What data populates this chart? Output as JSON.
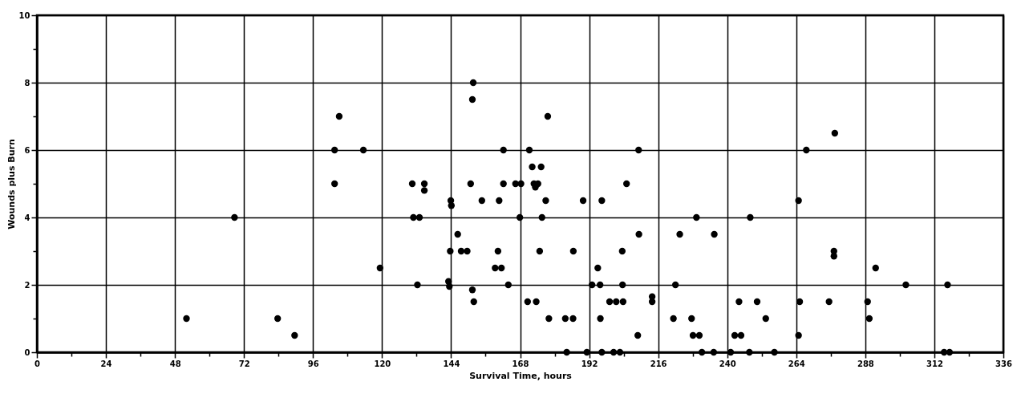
{
  "chart_data": {
    "type": "scatter",
    "xlabel": "Survival Time, hours",
    "ylabel": "Wounds plus Burn",
    "marker": "circle",
    "grid": true,
    "xlim": [
      0,
      336
    ],
    "ylim": [
      0,
      10
    ],
    "xticks": [
      0,
      {
        "value": 12,
        "label": null
      },
      24,
      {
        "value": 36,
        "label": null
      },
      48,
      {
        "value": 60,
        "label": null
      },
      72,
      {
        "value": 84,
        "label": null
      },
      96,
      {
        "value": 108,
        "label": null
      },
      120,
      {
        "value": 132,
        "label": null
      },
      144,
      {
        "value": 156,
        "label": null
      },
      168,
      {
        "value": 180,
        "label": null
      },
      192,
      {
        "value": 204,
        "label": null
      },
      216,
      {
        "value": 228,
        "label": null
      },
      240,
      {
        "value": 252,
        "label": null
      },
      264,
      {
        "value": 276,
        "label": null
      },
      288,
      {
        "value": 300,
        "label": null
      },
      312,
      {
        "value": 324,
        "label": null
      },
      336
    ],
    "yticks": [
      0,
      {
        "value": 1,
        "label": null
      },
      2,
      {
        "value": 3,
        "label": null
      },
      4,
      {
        "value": 5,
        "label": null
      },
      6,
      {
        "value": 7,
        "label": null
      },
      8,
      {
        "value": 9,
        "label": null
      },
      10
    ],
    "series": [
      {
        "color": "#000000",
        "x": [
          52,
          68.7,
          83.7,
          89.6,
          103.5,
          103.5,
          105.1,
          113.5,
          119.3,
          151.7,
          151.4,
          177.6,
          162.2,
          171.2,
          209.2,
          172.2,
          175.3,
          130.5,
          134.7,
          134.7,
          150.8,
          162.2,
          166.4,
          168.3,
          172.8,
          174.2,
          173.3,
          205,
          143.9,
          144.1,
          154.7,
          160.7,
          176.9,
          189.9,
          196.4,
          130.9,
          133,
          167.9,
          175.6,
          146.3,
          209.3,
          223.5,
          143.7,
          147.5,
          149.6,
          160.3,
          174.8,
          186.5,
          203.5,
          159.3,
          161.5,
          195,
          132.3,
          143.1,
          143.4,
          151.4,
          151.9,
          163.9,
          170.6,
          173.6,
          193,
          195.8,
          203.6,
          222,
          199.1,
          201.4,
          203.8,
          213.9,
          213.9,
          178,
          183.7,
          186.4,
          195.9,
          221.3,
          208.9,
          184.2,
          191.2,
          196.4,
          200.5,
          202.7,
          231.2,
          235.3,
          241.2,
          247.7,
          256.4,
          227.6,
          228.1,
          230.3,
          235.5,
          229.3,
          248,
          244.1,
          250.4,
          253.4,
          242.6,
          244.8,
          267.5,
          277.4,
          264.8,
          277.1,
          277.1,
          291.6,
          302.1,
          316.6,
          265.2,
          275.4,
          288.8,
          289.4,
          264.8,
          315.4,
          317.3
        ],
        "values": [
          1,
          4,
          1,
          0.5,
          6,
          5,
          7,
          6,
          2.5,
          8,
          7.5,
          7,
          6,
          6,
          6,
          5.5,
          5.5,
          5,
          5,
          4.8,
          5,
          5,
          5,
          5,
          5,
          5,
          4.9,
          5,
          4.5,
          4.35,
          4.5,
          4.5,
          4.5,
          4.5,
          4.5,
          4,
          4,
          4,
          4,
          3.5,
          3.5,
          3.5,
          3,
          3,
          3,
          3,
          3,
          3,
          3,
          2.5,
          2.5,
          2.5,
          2,
          2.1,
          1.95,
          1.85,
          1.5,
          2,
          1.5,
          1.5,
          2,
          2,
          2,
          2,
          1.5,
          1.5,
          1.5,
          1.65,
          1.5,
          1,
          1,
          1,
          1,
          1,
          0.5,
          0,
          0,
          0,
          0,
          0,
          0,
          0,
          0,
          0,
          0,
          1,
          0.5,
          0.5,
          3.5,
          4,
          4,
          1.5,
          1.5,
          1,
          0.5,
          0.5,
          6,
          6.5,
          4.5,
          3,
          2.85,
          2.5,
          2,
          2,
          1.5,
          1.5,
          1.5,
          1,
          0.5,
          0,
          0
        ]
      }
    ]
  }
}
